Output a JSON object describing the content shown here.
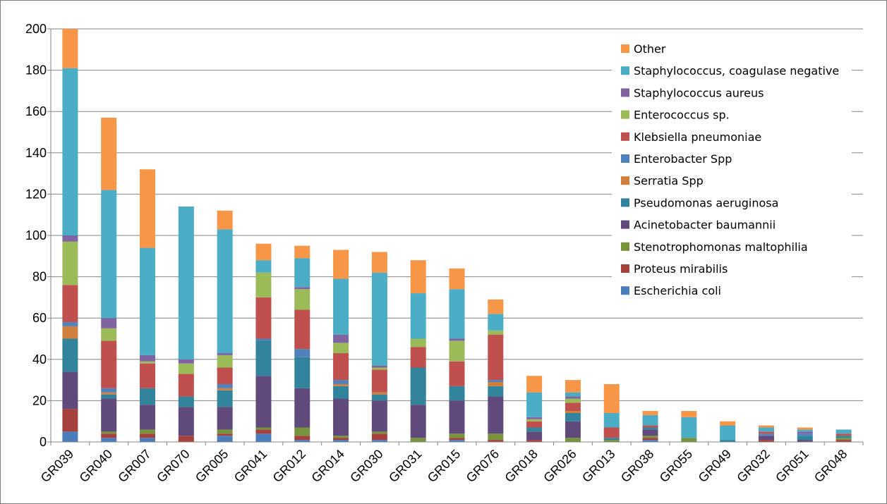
{
  "chart_data": {
    "type": "bar",
    "stacked": true,
    "title": "",
    "xlabel": "",
    "ylabel": "",
    "ylim": [
      0,
      200
    ],
    "yticks": [
      0,
      20,
      40,
      60,
      80,
      100,
      120,
      140,
      160,
      180,
      200
    ],
    "grid": "horizontal",
    "legend_position": "top-right",
    "categories": [
      "GR039",
      "GR040",
      "GR007",
      "GR070",
      "GR005",
      "GR041",
      "GR012",
      "GR014",
      "GR030",
      "GR031",
      "GR015",
      "GR076",
      "GR018",
      "GR026",
      "GR013",
      "GR038",
      "GR055",
      "GR049",
      "GR032",
      "GR051",
      "GR048"
    ],
    "series": [
      {
        "name": "Escherichia coli",
        "color": "#4a7ebb",
        "values": [
          5,
          2,
          2,
          0,
          3,
          4,
          1,
          1,
          1,
          0,
          1,
          0,
          0,
          0,
          0,
          1,
          0,
          0,
          0,
          0,
          0
        ]
      },
      {
        "name": "Proteus mirabilis",
        "color": "#a5403d",
        "values": [
          11,
          2,
          2,
          3,
          1,
          2,
          2,
          1,
          3,
          0,
          1,
          1,
          1,
          0,
          0,
          1,
          0,
          0,
          1,
          0,
          1
        ]
      },
      {
        "name": "Stenotrophomonas maltophilia",
        "color": "#77933c",
        "values": [
          0,
          1,
          2,
          0,
          2,
          1,
          4,
          1,
          1,
          2,
          2,
          3,
          0,
          2,
          1,
          1,
          2,
          0,
          0,
          0,
          1
        ]
      },
      {
        "name": "Acinetobacter baumannii",
        "color": "#604a7b",
        "values": [
          18,
          16,
          12,
          14,
          11,
          25,
          19,
          18,
          15,
          16,
          16,
          18,
          4,
          8,
          0,
          3,
          0,
          0,
          2,
          1,
          0
        ]
      },
      {
        "name": "Pseudomonas aeruginosa",
        "color": "#31849b",
        "values": [
          16,
          2,
          8,
          5,
          8,
          17,
          15,
          6,
          3,
          18,
          7,
          5,
          2,
          4,
          1,
          1,
          0,
          1,
          0,
          2,
          1
        ]
      },
      {
        "name": "Serratia Spp",
        "color": "#d0803c",
        "values": [
          6,
          1,
          0,
          0,
          1,
          0,
          0,
          1,
          1,
          0,
          0,
          2,
          0,
          1,
          0,
          0,
          0,
          0,
          0,
          0,
          0
        ]
      },
      {
        "name": "Enterobacter Spp",
        "color": "#4f81bd",
        "values": [
          2,
          2,
          0,
          0,
          2,
          1,
          4,
          2,
          0,
          0,
          0,
          1,
          0,
          0,
          0,
          0,
          0,
          0,
          1,
          1,
          0
        ]
      },
      {
        "name": "Klebsiella pneumoniae",
        "color": "#c0504d",
        "values": [
          18,
          23,
          12,
          11,
          8,
          20,
          19,
          13,
          11,
          10,
          12,
          22,
          3,
          4,
          5,
          1,
          0,
          0,
          1,
          0,
          1
        ]
      },
      {
        "name": "Enterococcus sp.",
        "color": "#9bbb59",
        "values": [
          21,
          6,
          1,
          5,
          6,
          12,
          10,
          5,
          1,
          4,
          10,
          2,
          1,
          2,
          0,
          0,
          0,
          0,
          0,
          0,
          0
        ]
      },
      {
        "name": "Staphylococcus aureus",
        "color": "#8064a2",
        "values": [
          3,
          5,
          3,
          2,
          1,
          0,
          1,
          4,
          1,
          0,
          1,
          0,
          1,
          1,
          0,
          0,
          0,
          0,
          0,
          1,
          0
        ]
      },
      {
        "name": "Staphylococcus, coagulase negative",
        "color": "#4bacc6",
        "values": [
          81,
          62,
          52,
          74,
          60,
          6,
          14,
          27,
          45,
          22,
          24,
          8,
          12,
          2,
          7,
          5,
          10,
          7,
          2,
          1,
          2
        ]
      },
      {
        "name": "Other",
        "color": "#f79646",
        "values": [
          19,
          35,
          38,
          0,
          9,
          8,
          6,
          14,
          10,
          16,
          10,
          7,
          8,
          6,
          14,
          2,
          3,
          2,
          1,
          1,
          0
        ]
      }
    ]
  }
}
